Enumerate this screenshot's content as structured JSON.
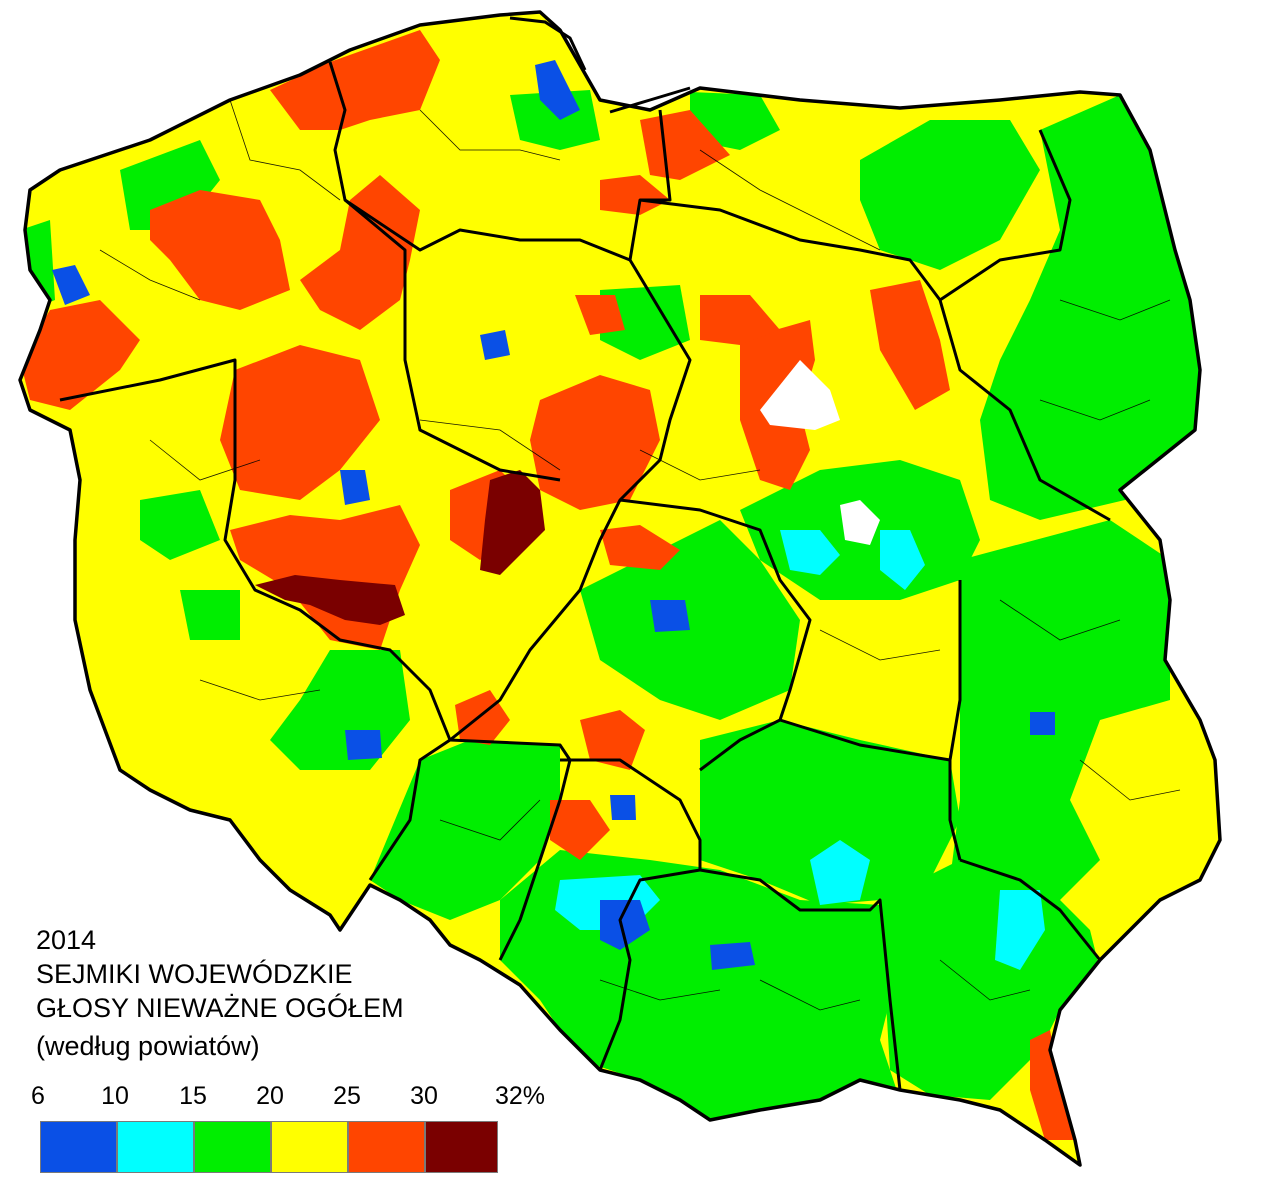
{
  "title": {
    "year": "2014",
    "line1": "SEJMIKI WOJEWÓDZKIE",
    "line2": "GŁOSY NIEWAŻNE OGÓŁEM",
    "line3": "(według powiatów)"
  },
  "legend": {
    "ticks": [
      "6",
      "10",
      "15",
      "20",
      "25",
      "30",
      "32%"
    ],
    "bins": [
      {
        "from": 6,
        "to": 10,
        "color": "#0a50e6"
      },
      {
        "from": 10,
        "to": 15,
        "color": "#00ffff"
      },
      {
        "from": 15,
        "to": 20,
        "color": "#00ee00"
      },
      {
        "from": 20,
        "to": 25,
        "color": "#ffff00"
      },
      {
        "from": 25,
        "to": 30,
        "color": "#ff4500"
      },
      {
        "from": 30,
        "to": 32,
        "color": "#7a0000"
      }
    ]
  },
  "colors": {
    "no_data": "#ffffff",
    "border": "#000000"
  }
}
